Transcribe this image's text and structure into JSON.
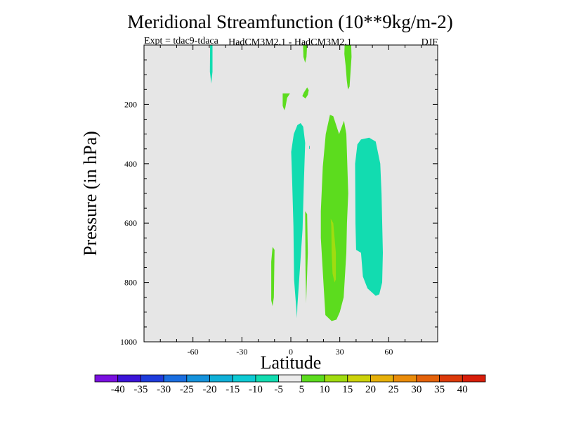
{
  "chart_data": {
    "type": "contour",
    "title": "Meridional Streamfunction (10**9kg/m-2)",
    "subtitle_left": "Expt = tdac9-tdaca",
    "subtitle_center": "HadCM3M2.1 - HadCM3M2.1",
    "subtitle_right": "DJF",
    "xlabel": "Latitude",
    "ylabel": "Pressure (in hPa)",
    "xlim": [
      -90,
      90
    ],
    "ylim": [
      1000,
      0
    ],
    "xticks": [
      -60,
      -30,
      0,
      30,
      60
    ],
    "xtick_labels": [
      "-60",
      "-30",
      "0",
      "30",
      "60"
    ],
    "yticks": [
      200,
      400,
      600,
      800,
      1000
    ],
    "ytick_labels": [
      "200",
      "400",
      "600",
      "800",
      "1000"
    ],
    "colorbar": {
      "boundaries": [
        -40,
        -35,
        -30,
        -25,
        -20,
        -15,
        -10,
        -5,
        5,
        10,
        15,
        20,
        25,
        30,
        35,
        40
      ],
      "labels": [
        "-40",
        "-35",
        "-30",
        "-25",
        "-20",
        "-15",
        "-10",
        "-5",
        "5",
        "10",
        "15",
        "20",
        "25",
        "30",
        "35",
        "40"
      ],
      "colors": [
        "#7a10e0",
        "#3c14d8",
        "#1e3cdc",
        "#1a6ee0",
        "#1592dc",
        "#10b0d8",
        "#0ecad4",
        "#12dcb0",
        "#ebebeb",
        "#5cdc1e",
        "#a0dc10",
        "#ccd20a",
        "#e6b00a",
        "#ea8c0a",
        "#e4620a",
        "#dc3a0a",
        "#d81e0a"
      ]
    },
    "background_color": "#e6e6e6",
    "regions": [
      {
        "name": "cyan-strip-48s",
        "level": "-10 to -5",
        "color": "#12dcb0",
        "points": [
          [
            -49.5,
            0
          ],
          [
            -48,
            0
          ],
          [
            -48,
            90
          ],
          [
            -48.8,
            130
          ],
          [
            -49.6,
            90
          ]
        ]
      },
      {
        "name": "green-streak-7n-top",
        "level": "5 to 10",
        "color": "#5cdc1e",
        "points": [
          [
            7.5,
            0
          ],
          [
            10,
            0
          ],
          [
            9.6,
            40
          ],
          [
            8.8,
            60
          ],
          [
            7.7,
            40
          ]
        ]
      },
      {
        "name": "green-streak-35n-top",
        "level": "5 to 10",
        "color": "#5cdc1e",
        "points": [
          [
            33,
            0
          ],
          [
            37,
            0
          ],
          [
            37.2,
            40
          ],
          [
            36.6,
            90
          ],
          [
            36,
            140
          ],
          [
            35,
            150
          ],
          [
            34.3,
            120
          ],
          [
            33.6,
            70
          ],
          [
            32.8,
            30
          ]
        ]
      },
      {
        "name": "green-blob-2s",
        "level": "5 to 10",
        "color": "#5cdc1e",
        "points": [
          [
            -5,
            163
          ],
          [
            -0.5,
            163
          ],
          [
            -2.3,
            178
          ],
          [
            -3.3,
            210
          ],
          [
            -4,
            220
          ],
          [
            -5,
            205
          ]
        ]
      },
      {
        "name": "green-blob-9n",
        "level": "5 to 10",
        "color": "#5cdc1e",
        "points": [
          [
            10,
            143
          ],
          [
            11,
            152
          ],
          [
            10.4,
            168
          ],
          [
            9,
            180
          ],
          [
            7,
            172
          ],
          [
            8,
            160
          ]
        ]
      },
      {
        "name": "cyan-column-5n",
        "level": "-10 to -5",
        "color": "#12dcb0",
        "points": [
          [
            6,
            263
          ],
          [
            7.6,
            275
          ],
          [
            8.8,
            330
          ],
          [
            8,
            460
          ],
          [
            7.2,
            620
          ],
          [
            4,
            880
          ],
          [
            3.8,
            920
          ],
          [
            2,
            790
          ],
          [
            1.6,
            610
          ],
          [
            0.8,
            460
          ],
          [
            0.2,
            360
          ],
          [
            1.8,
            300
          ],
          [
            4,
            270
          ]
        ]
      },
      {
        "name": "cyan-dot-11n",
        "level": "-10 to -5",
        "color": "#12dcb0",
        "points": [
          [
            11.2,
            340
          ],
          [
            11.6,
            340
          ],
          [
            11.6,
            350
          ],
          [
            11.2,
            350
          ]
        ]
      },
      {
        "name": "green-sliver-9n",
        "level": "5 to 10",
        "color": "#5cdc1e",
        "points": [
          [
            8.8,
            560
          ],
          [
            10,
            570
          ],
          [
            10.4,
            700
          ],
          [
            9.4,
            870
          ],
          [
            9,
            760
          ]
        ]
      },
      {
        "name": "green-blob-10s",
        "level": "5 to 10",
        "color": "#5cdc1e",
        "points": [
          [
            -11.2,
            680
          ],
          [
            -10,
            690
          ],
          [
            -10.4,
            850
          ],
          [
            -11.2,
            880
          ],
          [
            -12,
            860
          ],
          [
            -12,
            730
          ]
        ]
      },
      {
        "name": "cyan-oval-50n",
        "level": "-10 to -5",
        "color": "#12dcb0",
        "points": [
          [
            43,
            318
          ],
          [
            48,
            312
          ],
          [
            52,
            325
          ],
          [
            54.8,
            400
          ],
          [
            55.6,
            500
          ],
          [
            56.4,
            700
          ],
          [
            56,
            800
          ],
          [
            54.2,
            840
          ],
          [
            52,
            845
          ],
          [
            47,
            820
          ],
          [
            44.2,
            780
          ],
          [
            43,
            700
          ],
          [
            40,
            690
          ],
          [
            39.6,
            600
          ],
          [
            39.4,
            400
          ],
          [
            40.8,
            335
          ]
        ]
      },
      {
        "name": "green-oval-25n",
        "level": "5 to 10",
        "color": "#5cdc1e",
        "points": [
          [
            24,
            235
          ],
          [
            26,
            240
          ],
          [
            29.6,
            300
          ],
          [
            32.6,
            255
          ],
          [
            34,
            300
          ],
          [
            35.2,
            500
          ],
          [
            34.4,
            600
          ],
          [
            34,
            700
          ],
          [
            32.4,
            850
          ],
          [
            30,
            900
          ],
          [
            28,
            925
          ],
          [
            25,
            930
          ],
          [
            21.2,
            910
          ],
          [
            20,
            800
          ],
          [
            18.4,
            650
          ],
          [
            18.4,
            560
          ],
          [
            19.6,
            410
          ],
          [
            21.4,
            300
          ]
        ]
      },
      {
        "name": "yellowgreen-core-25n",
        "level": "10 to 15",
        "color": "#a0dc10",
        "points": [
          [
            24.4,
            585
          ],
          [
            26,
            600
          ],
          [
            27.6,
            700
          ],
          [
            27.6,
            790
          ],
          [
            26.8,
            800
          ],
          [
            25.6,
            770
          ],
          [
            25,
            700
          ],
          [
            24.8,
            610
          ]
        ]
      }
    ]
  }
}
